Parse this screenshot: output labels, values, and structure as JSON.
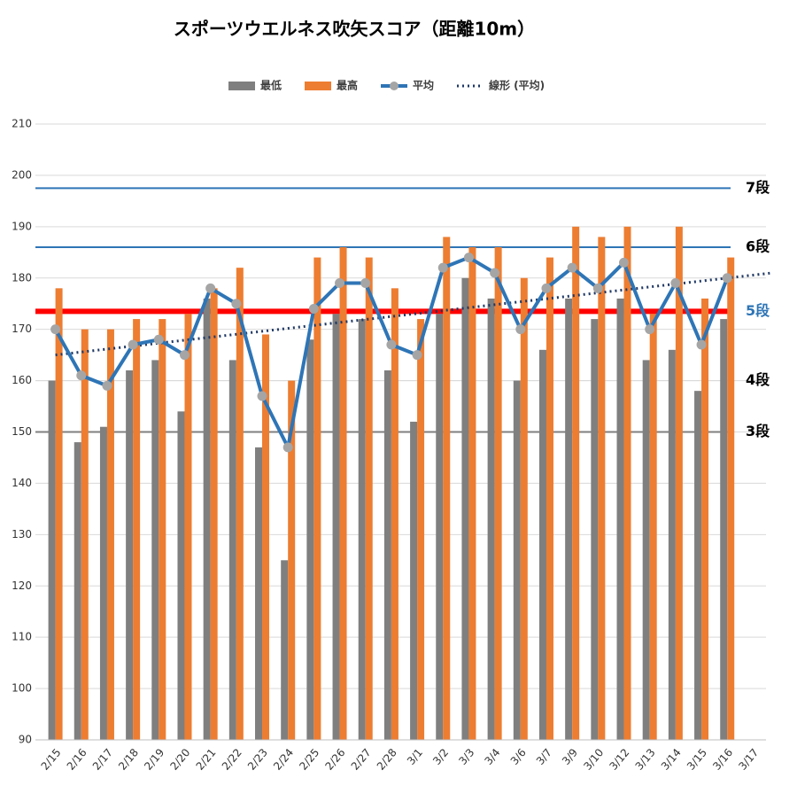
{
  "chart_data": {
    "type": "bar",
    "title": "スポーツウエルネス吹矢スコア（距離10m）",
    "categories": [
      "2/15",
      "2/16",
      "2/17",
      "2/18",
      "2/19",
      "2/20",
      "2/21",
      "2/22",
      "2/23",
      "2/24",
      "2/25",
      "2/26",
      "2/27",
      "2/28",
      "3/1",
      "3/2",
      "3/3",
      "3/4",
      "3/6",
      "3/7",
      "3/9",
      "3/10",
      "3/12",
      "3/13",
      "3/14",
      "3/15",
      "3/16",
      "3/17"
    ],
    "series": [
      {
        "name": "最低",
        "color": "#7f7f7f",
        "kind": "bar",
        "values": [
          160,
          148,
          151,
          162,
          164,
          154,
          176,
          164,
          147,
          125,
          168,
          173,
          172,
          162,
          152,
          173,
          180,
          176,
          160,
          166,
          176,
          172,
          176,
          164,
          166,
          158,
          172,
          null
        ]
      },
      {
        "name": "最高",
        "color": "#ed7d31",
        "kind": "bar",
        "values": [
          178,
          170,
          170,
          172,
          172,
          173,
          178,
          182,
          169,
          160,
          184,
          186,
          184,
          178,
          172,
          188,
          186,
          186,
          180,
          184,
          190,
          188,
          190,
          173,
          190,
          176,
          184,
          null
        ]
      },
      {
        "name": "平均",
        "color": "#2e75b6",
        "marker_color": "#a5a5a5",
        "kind": "line",
        "values": [
          170,
          161,
          159,
          167,
          168,
          165,
          178,
          175,
          157,
          147,
          174,
          179,
          179,
          167,
          165,
          182,
          184,
          181,
          170,
          178,
          182,
          178,
          183,
          170,
          179,
          167,
          180,
          null
        ]
      }
    ],
    "trend": {
      "name": "線形 (平均)",
      "color": "#1f3864",
      "start": 165,
      "end": 181
    },
    "levels": [
      {
        "label": "7段",
        "value": 197.5,
        "color": "#2e75b6",
        "label_color": "#000000",
        "width": 2
      },
      {
        "label": "6段",
        "value": 186,
        "color": "#2e75b6",
        "label_color": "#000000",
        "width": 2
      },
      {
        "label": "5段",
        "value": 173.5,
        "color": "#ff0000",
        "label_color": "#2e75b6",
        "width": 6
      },
      {
        "label": "4段",
        "value": 160,
        "color": "#d9d9d9",
        "label_color": "#000000",
        "width": 1
      },
      {
        "label": "3段",
        "value": 150,
        "color": "#7f7f7f",
        "label_color": "#000000",
        "width": 2
      }
    ],
    "ylim": [
      90,
      210
    ],
    "yticks": [
      90,
      100,
      110,
      120,
      130,
      140,
      150,
      160,
      170,
      180,
      190,
      200,
      210
    ],
    "grid": true
  }
}
